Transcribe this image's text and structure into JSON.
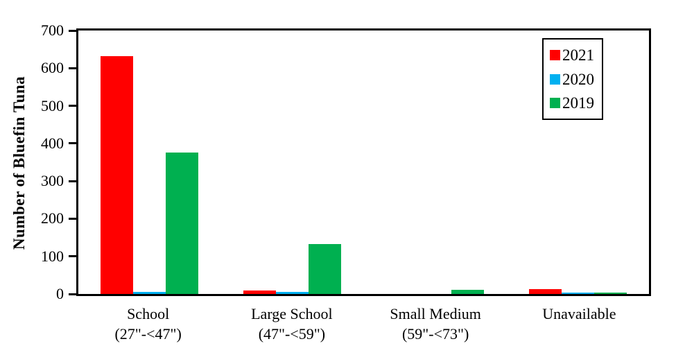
{
  "chart_data": {
    "type": "bar",
    "title": "",
    "ylabel": "Number of Bluefin Tuna",
    "xlabel": "",
    "ylim": [
      0,
      700
    ],
    "ytick_step": 100,
    "yticks": [
      0,
      100,
      200,
      300,
      400,
      500,
      600,
      700
    ],
    "grid": false,
    "legend_position": "top-right",
    "plot_border": "#000000",
    "background": "#FFFFFF",
    "categories": [
      "School",
      "Large School",
      "Small Medium",
      "Unavailable"
    ],
    "category_sublabels": [
      "(27\"-<47\")",
      "(47\"-<59\")",
      "(59\"-<73\")",
      ""
    ],
    "series": [
      {
        "name": "2021",
        "color": "#FF0000",
        "values": [
          632,
          10,
          0,
          13
        ]
      },
      {
        "name": "2020",
        "color": "#00B0F0",
        "values": [
          5,
          5,
          0,
          4
        ]
      },
      {
        "name": "2019",
        "color": "#00B050",
        "values": [
          375,
          132,
          11,
          3
        ]
      }
    ]
  }
}
